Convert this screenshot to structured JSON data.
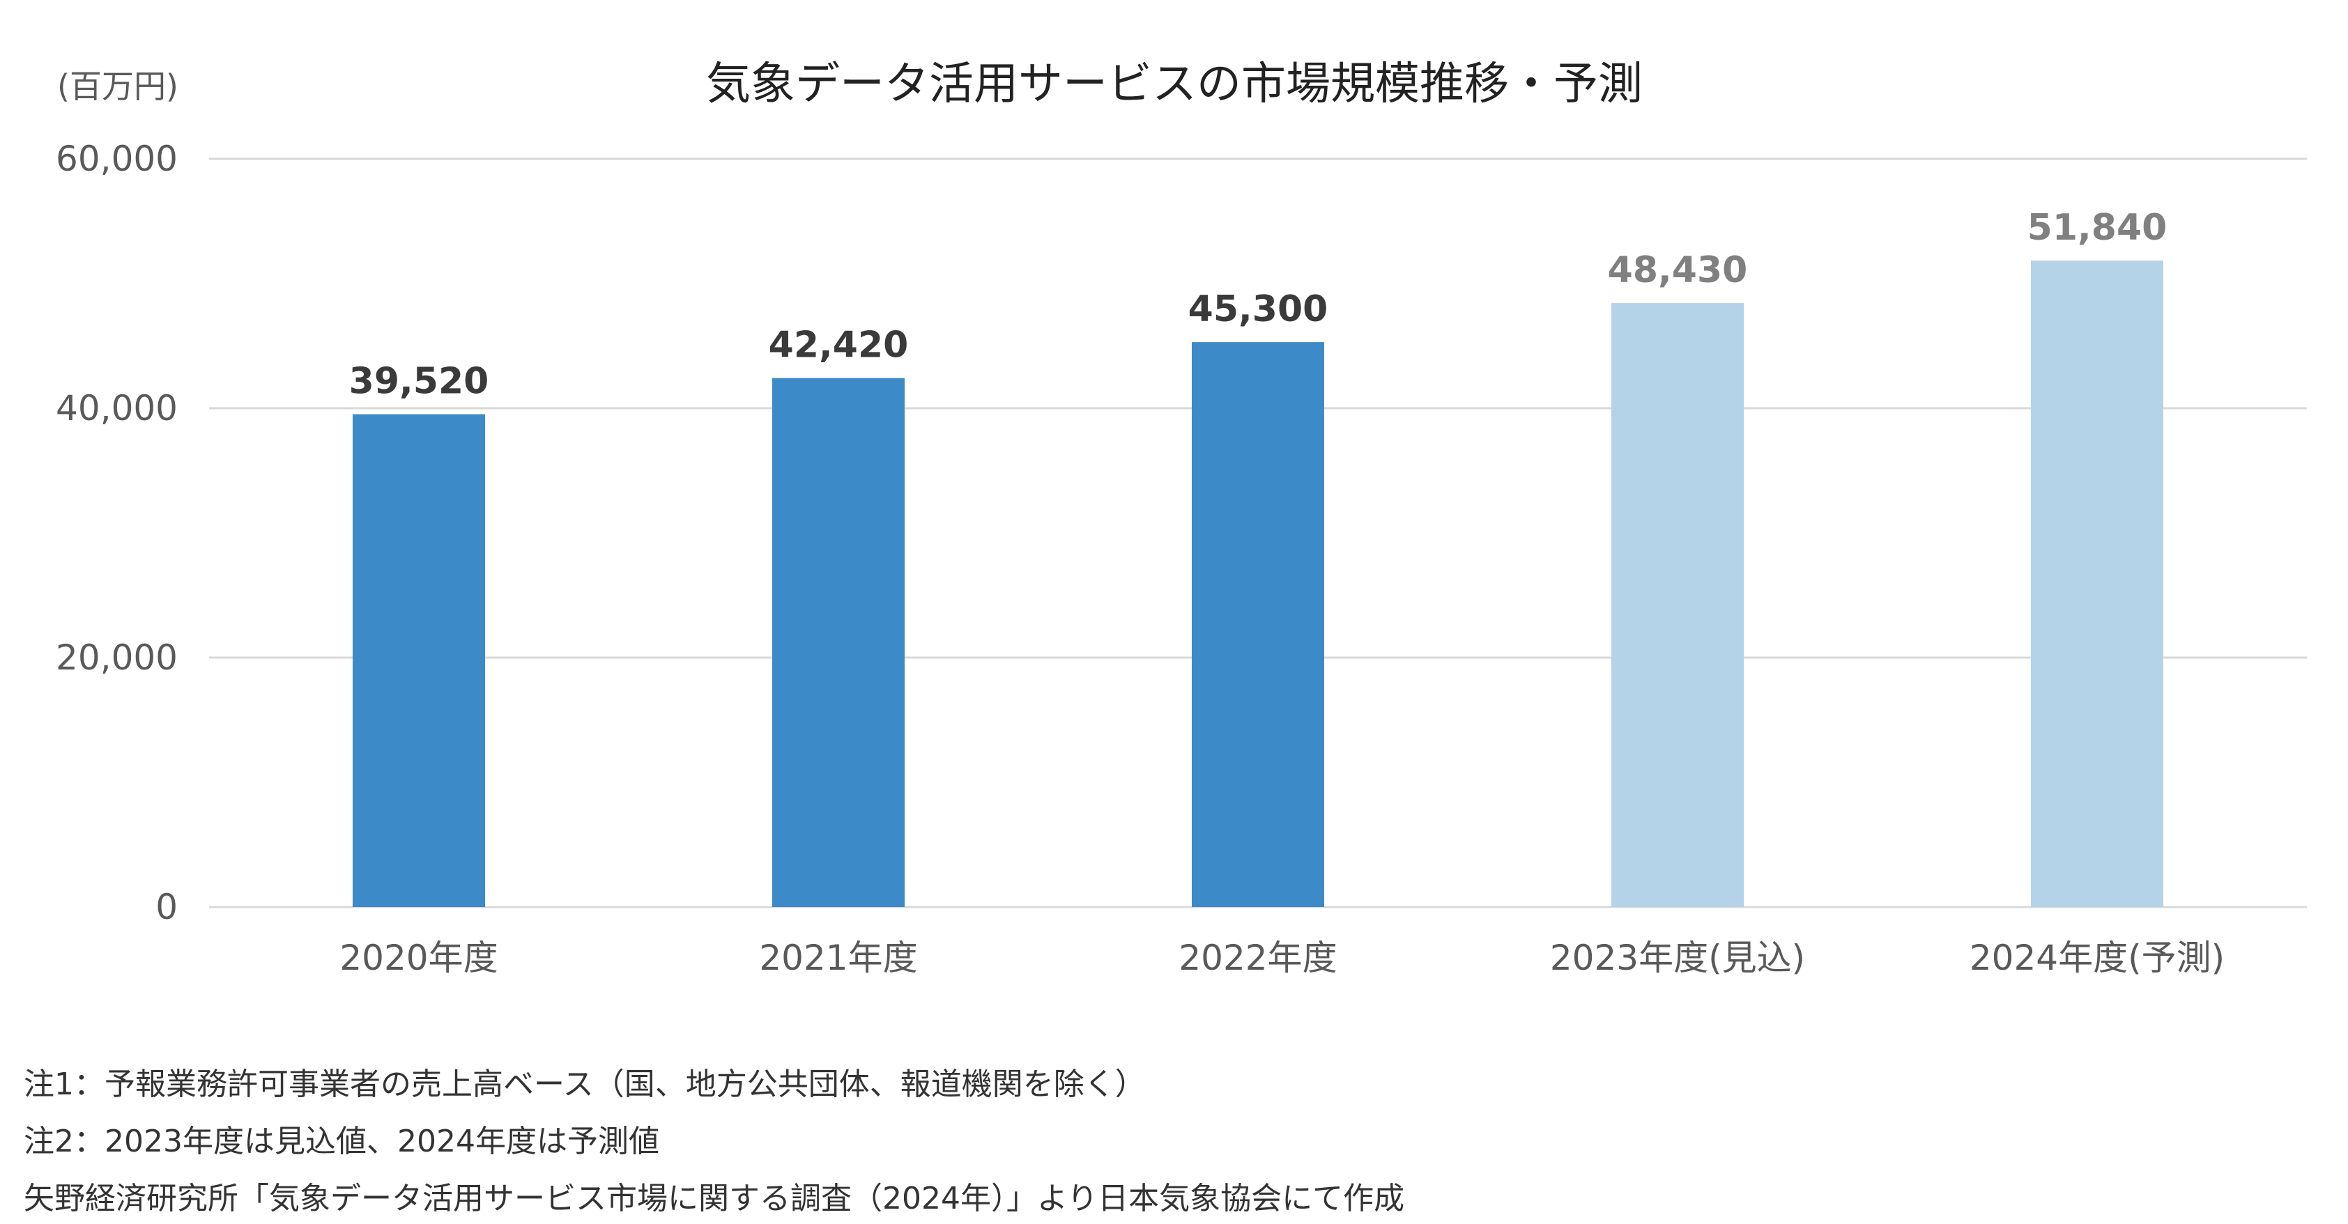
{
  "chart_data": {
    "type": "bar",
    "title": "気象データ活用サービスの市場規模推移・予測",
    "unit_label": "(百万円)",
    "categories": [
      "2020年度",
      "2021年度",
      "2022年度",
      "2023年度(見込)",
      "2024年度(予測)"
    ],
    "values": [
      39520,
      42420,
      45300,
      48430,
      51840
    ],
    "value_labels": [
      "39,520",
      "42,420",
      "45,300",
      "48,430",
      "51,840"
    ],
    "bar_kinds": [
      "actual",
      "actual",
      "actual",
      "estimate",
      "forecast"
    ],
    "ylim": [
      0,
      60000
    ],
    "yticks": [
      0,
      20000,
      40000,
      60000
    ],
    "ytick_labels": [
      "0",
      "20,000",
      "40,000",
      "60,000"
    ],
    "grid": true,
    "colors": {
      "actual": "#3d8ac8",
      "projected": "#b4d2e8",
      "actual_label": "#3a3a3a",
      "projected_label": "#808080",
      "grid": "#d9d9d9",
      "axis_text": "#595959"
    }
  },
  "notes": [
    "注1：予報業務許可事業者の売上高ベース（国、地方公共団体、報道機関を除く）",
    "注2：2023年度は見込値、2024年度は予測値",
    "矢野経済研究所「気象データ活用サービス市場に関する調査（2024年）」より日本気象協会にて作成"
  ]
}
